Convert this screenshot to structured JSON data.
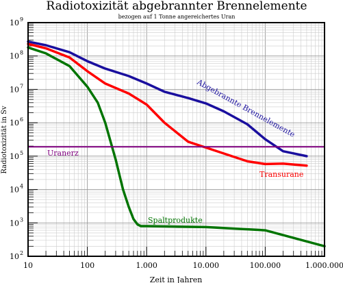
{
  "chart_data": {
    "type": "line",
    "title": "Radiotoxizität abgebrannter Brennelemente",
    "subtitle": "bezogen auf 1 Tonne angereichertes Uran",
    "xlabel": "Zeit in Jahren",
    "ylabel": "Radiotoxizität in Sv",
    "xscale": "log",
    "yscale": "log",
    "xlim": [
      10,
      1000000
    ],
    "ylim": [
      100,
      1000000000
    ],
    "grid": true,
    "x_ticks": [
      {
        "value": 10,
        "label": "10"
      },
      {
        "value": 100,
        "label": "100"
      },
      {
        "value": 1000,
        "label": "1.000"
      },
      {
        "value": 10000,
        "label": "10.000"
      },
      {
        "value": 100000,
        "label": "100.000"
      },
      {
        "value": 1000000,
        "label": "1.000.000"
      }
    ],
    "y_ticks": [
      {
        "value": 100,
        "base": "10",
        "exp": "2"
      },
      {
        "value": 1000,
        "base": "10",
        "exp": "3"
      },
      {
        "value": 10000,
        "base": "10",
        "exp": "4"
      },
      {
        "value": 100000,
        "base": "10",
        "exp": "5"
      },
      {
        "value": 1000000,
        "base": "10",
        "exp": "6"
      },
      {
        "value": 10000000,
        "base": "10",
        "exp": "7"
      },
      {
        "value": 100000000,
        "base": "10",
        "exp": "8"
      },
      {
        "value": 1000000000,
        "base": "10",
        "exp": "9"
      }
    ],
    "series": [
      {
        "name": "Abgebrannte Brennelemente",
        "color": "#1a0f9e",
        "x": [
          10,
          20,
          50,
          100,
          200,
          500,
          1000,
          2000,
          5000,
          10000,
          20000,
          50000,
          100000,
          200000,
          500000
        ],
        "y": [
          270000000,
          210000000,
          130000000,
          70000000,
          42000000,
          25000000,
          15000000,
          8500000,
          5500000,
          3800000,
          2200000,
          900000,
          320000,
          140000,
          100000
        ]
      },
      {
        "name": "Transurane",
        "color": "#ff0000",
        "x": [
          10,
          20,
          50,
          100,
          200,
          500,
          1000,
          2000,
          5000,
          10000,
          20000,
          50000,
          100000,
          200000,
          500000
        ],
        "y": [
          230000000,
          170000000,
          90000000,
          35000000,
          15000000,
          7500000,
          3500000,
          1000000,
          270000,
          180000,
          120000,
          70000,
          58000,
          60000,
          52000
        ]
      },
      {
        "name": "Spaltprodukte",
        "color": "#007400",
        "x": [
          10,
          20,
          50,
          100,
          150,
          200,
          300,
          400,
          500,
          600,
          700,
          800,
          1000,
          10000,
          100000,
          1000000
        ],
        "y": [
          180000000,
          120000000,
          50000000,
          12000000,
          4000000,
          1000000,
          80000,
          10000,
          3000,
          1300,
          900,
          800,
          800,
          750,
          600,
          200
        ]
      },
      {
        "name": "Uranerz",
        "color": "#800080",
        "x": [
          10,
          1000000
        ],
        "y": [
          190000,
          190000
        ]
      }
    ],
    "labels": [
      {
        "text": "Abgebrannte Brennelemente",
        "color": "#1a0f9e"
      },
      {
        "text": "Transurane",
        "color": "#ff0000"
      },
      {
        "text": "Spaltprodukte",
        "color": "#007400"
      },
      {
        "text": "Uranerz",
        "color": "#800080"
      }
    ]
  }
}
